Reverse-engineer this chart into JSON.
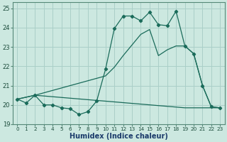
{
  "xlabel": "Humidex (Indice chaleur)",
  "background_color": "#cce8e0",
  "grid_color": "#aacfc8",
  "line_color": "#1a6b5a",
  "xlim": [
    -0.5,
    23.5
  ],
  "ylim": [
    19,
    25.3
  ],
  "yticks": [
    19,
    20,
    21,
    22,
    23,
    24,
    25
  ],
  "xticks": [
    0,
    1,
    2,
    3,
    4,
    5,
    6,
    7,
    8,
    9,
    10,
    11,
    12,
    13,
    14,
    15,
    16,
    17,
    18,
    19,
    20,
    21,
    22,
    23
  ],
  "series1_x": [
    0,
    1,
    2,
    3,
    4,
    5,
    6,
    7,
    8,
    9,
    10,
    11,
    12,
    13,
    14,
    15,
    16,
    17,
    18,
    19,
    20,
    21,
    22,
    23
  ],
  "series1_y": [
    20.3,
    20.1,
    20.5,
    20.0,
    20.0,
    19.85,
    19.8,
    19.5,
    19.65,
    20.2,
    21.85,
    23.95,
    24.6,
    24.6,
    24.35,
    24.8,
    24.15,
    24.1,
    24.85,
    23.05,
    22.65,
    21.0,
    19.9,
    19.85
  ],
  "series2_x": [
    0,
    2,
    19,
    23
  ],
  "series2_y": [
    20.3,
    20.5,
    19.85,
    19.85
  ],
  "series3_x": [
    0,
    2,
    10,
    11,
    12,
    13,
    14,
    15,
    16,
    17,
    18,
    19,
    20,
    21,
    22,
    23
  ],
  "series3_y": [
    20.3,
    20.5,
    21.5,
    21.95,
    22.55,
    23.1,
    23.65,
    23.9,
    22.55,
    22.85,
    23.05,
    23.05,
    22.65,
    21.0,
    19.9,
    19.85
  ]
}
